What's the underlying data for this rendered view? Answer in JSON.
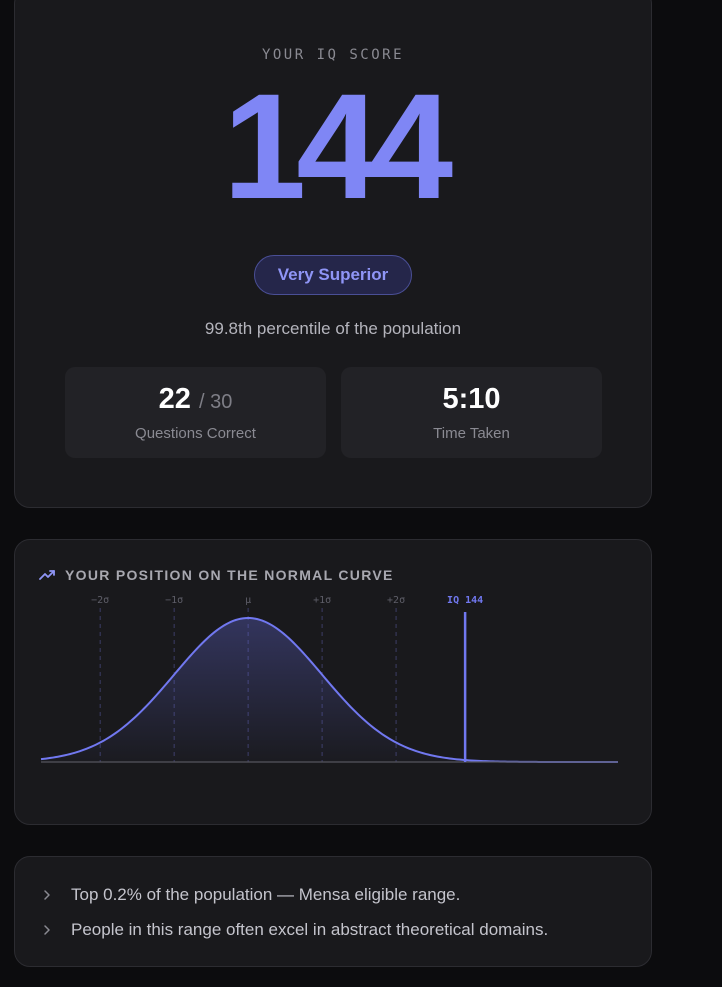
{
  "score": {
    "label": "YOUR IQ SCORE",
    "value": "144",
    "classification": "Very Superior",
    "percentile_text": "99.8th percentile of the population"
  },
  "stats": {
    "questions": {
      "correct": "22",
      "total": "/ 30",
      "label": "Questions Correct"
    },
    "time": {
      "value": "5:10",
      "label": "Time Taken"
    }
  },
  "curve": {
    "title": "YOUR POSITION ON THE NORMAL CURVE",
    "title_icon": "trending-up-icon",
    "accent": "#7178f0"
  },
  "chart_data": {
    "type": "line",
    "mean": 100,
    "sd": 15,
    "xlim": [
      58,
      175
    ],
    "x_ticks": [
      {
        "value": 70,
        "label": "−2σ"
      },
      {
        "value": 85,
        "label": "−1σ"
      },
      {
        "value": 100,
        "label": "μ"
      },
      {
        "value": 115,
        "label": "+1σ"
      },
      {
        "value": 130,
        "label": "+2σ"
      }
    ],
    "marker": {
      "value": 144,
      "label": "IQ 144"
    }
  },
  "insights": [
    "Top 0.2% of the population — Mensa eligible range.",
    "People in this range often excel in abstract theoretical domains."
  ]
}
